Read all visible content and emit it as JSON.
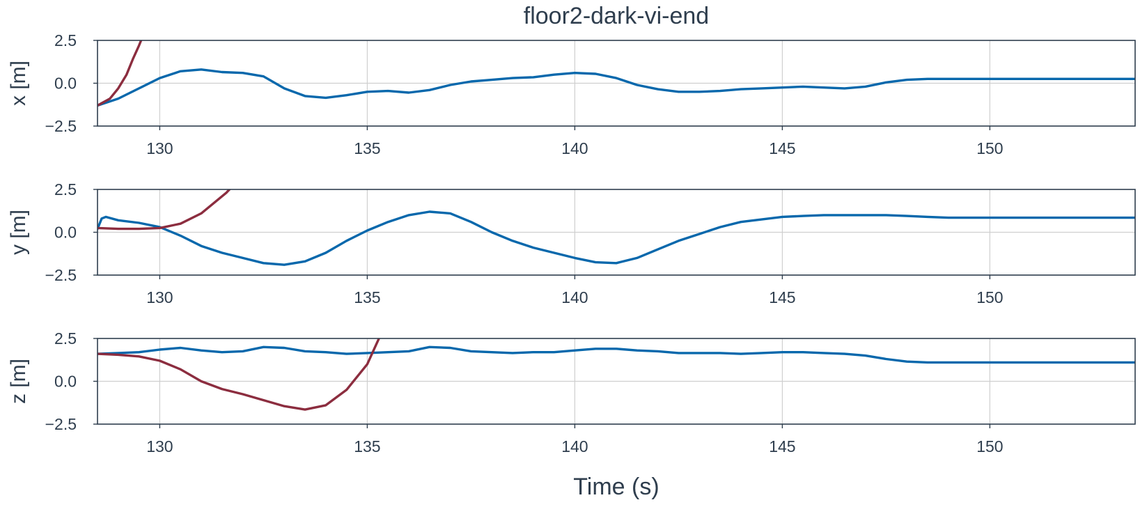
{
  "colors": {
    "blue": "#0868ac",
    "red": "#8c2d3f",
    "text": "#2f3e4e",
    "grid": "#cfcfcf"
  },
  "chart_data": {
    "type": "line",
    "title": "floor2-dark-vi-end",
    "xlabel": "Time (s)",
    "xlim": [
      128.5,
      153.5
    ],
    "xticks": [
      130,
      135,
      140,
      145,
      150
    ],
    "legend": "none",
    "grid": true,
    "panels": [
      {
        "ylabel": "x [m]",
        "ylim": [
          -2.5,
          2.5
        ],
        "yticks": [
          2.5,
          0.0,
          -2.5
        ],
        "ytick_labels": [
          "2.5",
          "0.0",
          "−2.5"
        ],
        "series": [
          {
            "color": "#0868ac",
            "x": [
              128.5,
              129.0,
              129.5,
              130.0,
              130.5,
              131.0,
              131.5,
              132.0,
              132.5,
              133.0,
              133.5,
              134.0,
              134.5,
              135.0,
              135.5,
              136.0,
              136.5,
              137.0,
              137.5,
              138.0,
              138.5,
              139.0,
              139.5,
              140.0,
              140.5,
              141.0,
              141.5,
              142.0,
              142.5,
              143.0,
              143.5,
              144.0,
              144.5,
              145.0,
              145.5,
              146.0,
              146.5,
              147.0,
              147.5,
              148.0,
              148.5,
              149.0,
              150.0,
              151.0,
              152.0,
              153.5
            ],
            "y": [
              -1.3,
              -0.9,
              -0.3,
              0.3,
              0.7,
              0.8,
              0.65,
              0.6,
              0.4,
              -0.3,
              -0.75,
              -0.85,
              -0.7,
              -0.5,
              -0.45,
              -0.55,
              -0.4,
              -0.1,
              0.1,
              0.2,
              0.3,
              0.35,
              0.5,
              0.6,
              0.55,
              0.3,
              -0.1,
              -0.35,
              -0.5,
              -0.5,
              -0.45,
              -0.35,
              -0.3,
              -0.25,
              -0.2,
              -0.25,
              -0.3,
              -0.2,
              0.05,
              0.2,
              0.25,
              0.25,
              0.25,
              0.25,
              0.25,
              0.25
            ]
          },
          {
            "color": "#8c2d3f",
            "x": [
              128.5,
              128.8,
              129.0,
              129.2,
              129.35,
              129.5,
              129.6
            ],
            "y": [
              -1.3,
              -0.9,
              -0.3,
              0.5,
              1.4,
              2.2,
              2.8
            ]
          }
        ]
      },
      {
        "ylabel": "y [m]",
        "ylim": [
          -2.5,
          2.5
        ],
        "yticks": [
          2.5,
          0.0,
          -2.5
        ],
        "ytick_labels": [
          "2.5",
          "0.0",
          "−2.5"
        ],
        "series": [
          {
            "color": "#0868ac",
            "x": [
              128.5,
              128.6,
              128.7,
              129.0,
              129.5,
              130.0,
              130.5,
              131.0,
              131.5,
              132.0,
              132.5,
              133.0,
              133.5,
              134.0,
              134.5,
              135.0,
              135.5,
              136.0,
              136.5,
              137.0,
              137.5,
              138.0,
              138.5,
              139.0,
              139.5,
              140.0,
              140.5,
              141.0,
              141.5,
              142.0,
              142.5,
              143.0,
              143.5,
              144.0,
              144.5,
              145.0,
              145.5,
              146.0,
              146.5,
              147.0,
              147.5,
              148.0,
              148.5,
              149.0,
              150.0,
              151.0,
              152.0,
              153.5
            ],
            "y": [
              0.2,
              0.8,
              0.9,
              0.7,
              0.55,
              0.3,
              -0.2,
              -0.8,
              -1.2,
              -1.5,
              -1.8,
              -1.9,
              -1.7,
              -1.2,
              -0.5,
              0.1,
              0.6,
              1.0,
              1.2,
              1.1,
              0.6,
              0.0,
              -0.5,
              -0.9,
              -1.2,
              -1.5,
              -1.75,
              -1.8,
              -1.5,
              -1.0,
              -0.5,
              -0.1,
              0.3,
              0.6,
              0.75,
              0.9,
              0.95,
              1.0,
              1.0,
              1.0,
              1.0,
              0.95,
              0.9,
              0.85,
              0.85,
              0.85,
              0.85,
              0.85
            ]
          },
          {
            "color": "#8c2d3f",
            "x": [
              128.5,
              129.0,
              129.5,
              130.0,
              130.5,
              131.0,
              131.3,
              131.6,
              131.8
            ],
            "y": [
              0.25,
              0.2,
              0.2,
              0.25,
              0.5,
              1.1,
              1.7,
              2.3,
              2.8
            ]
          }
        ]
      },
      {
        "ylabel": "z [m]",
        "ylim": [
          -2.5,
          2.5
        ],
        "yticks": [
          2.5,
          0.0,
          -2.5
        ],
        "ytick_labels": [
          "2.5",
          "0.0",
          "−2.5"
        ],
        "series": [
          {
            "color": "#0868ac",
            "x": [
              128.5,
              129.0,
              129.5,
              130.0,
              130.5,
              131.0,
              131.5,
              132.0,
              132.5,
              133.0,
              133.5,
              134.0,
              134.5,
              135.0,
              135.5,
              136.0,
              136.5,
              137.0,
              137.5,
              138.0,
              138.5,
              139.0,
              139.5,
              140.0,
              140.5,
              141.0,
              141.5,
              142.0,
              142.5,
              143.0,
              143.5,
              144.0,
              144.5,
              145.0,
              145.5,
              146.0,
              146.5,
              147.0,
              147.5,
              148.0,
              148.5,
              149.0,
              150.0,
              151.0,
              152.0,
              153.5
            ],
            "y": [
              1.6,
              1.65,
              1.7,
              1.85,
              1.95,
              1.8,
              1.7,
              1.75,
              2.0,
              1.95,
              1.75,
              1.7,
              1.6,
              1.65,
              1.7,
              1.75,
              2.0,
              1.95,
              1.75,
              1.7,
              1.65,
              1.7,
              1.7,
              1.8,
              1.9,
              1.9,
              1.8,
              1.75,
              1.65,
              1.65,
              1.65,
              1.6,
              1.65,
              1.7,
              1.7,
              1.65,
              1.6,
              1.5,
              1.3,
              1.15,
              1.1,
              1.1,
              1.1,
              1.1,
              1.1,
              1.1
            ]
          },
          {
            "color": "#8c2d3f",
            "x": [
              128.5,
              129.0,
              129.5,
              130.0,
              130.5,
              131.0,
              131.5,
              132.0,
              132.5,
              133.0,
              133.5,
              134.0,
              134.5,
              135.0,
              135.3
            ],
            "y": [
              1.6,
              1.55,
              1.45,
              1.2,
              0.7,
              0.0,
              -0.45,
              -0.75,
              -1.1,
              -1.45,
              -1.65,
              -1.4,
              -0.5,
              1.0,
              2.6
            ]
          }
        ]
      }
    ]
  }
}
